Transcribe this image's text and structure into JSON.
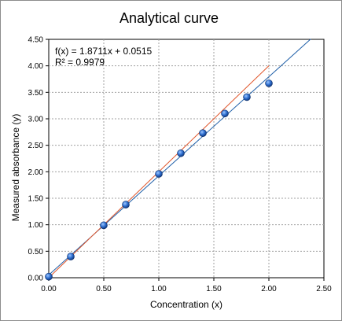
{
  "chart_data": {
    "type": "scatter",
    "title": "Analytical curve",
    "xlabel": "Concentration (x)",
    "ylabel": "Measured absorbance (y)",
    "xlim": [
      0,
      2.5
    ],
    "ylim": [
      0,
      4.5
    ],
    "xticks": [
      "0.00",
      "0.50",
      "1.00",
      "1.50",
      "2.00",
      "2.50"
    ],
    "yticks": [
      "0.00",
      "0.50",
      "1.00",
      "1.50",
      "2.00",
      "2.50",
      "3.00",
      "3.50",
      "4.00",
      "4.50"
    ],
    "grid": true,
    "series": [
      {
        "x": [
          0.0,
          0.2,
          0.5,
          0.7,
          1.0,
          1.2,
          1.4,
          1.6,
          1.8,
          2.0
        ],
        "y": [
          0.02,
          0.4,
          0.99,
          1.38,
          1.96,
          2.35,
          2.73,
          3.1,
          3.41,
          3.67
        ],
        "color": "#2060b8"
      }
    ],
    "lines": [
      {
        "type": "trendline",
        "slope": 1.8711,
        "intercept": 0.0515,
        "x_range": [
          0,
          2.38
        ],
        "color": "#1f5fa8"
      },
      {
        "type": "reference",
        "x_range": [
          0,
          2.0
        ],
        "y_range": [
          0.0,
          4.0
        ],
        "color": "#e0552a"
      }
    ],
    "annotations": {
      "equation": "f(x) = 1.8711x + 0.0515",
      "r_squared": "R² = 0.9979"
    }
  }
}
